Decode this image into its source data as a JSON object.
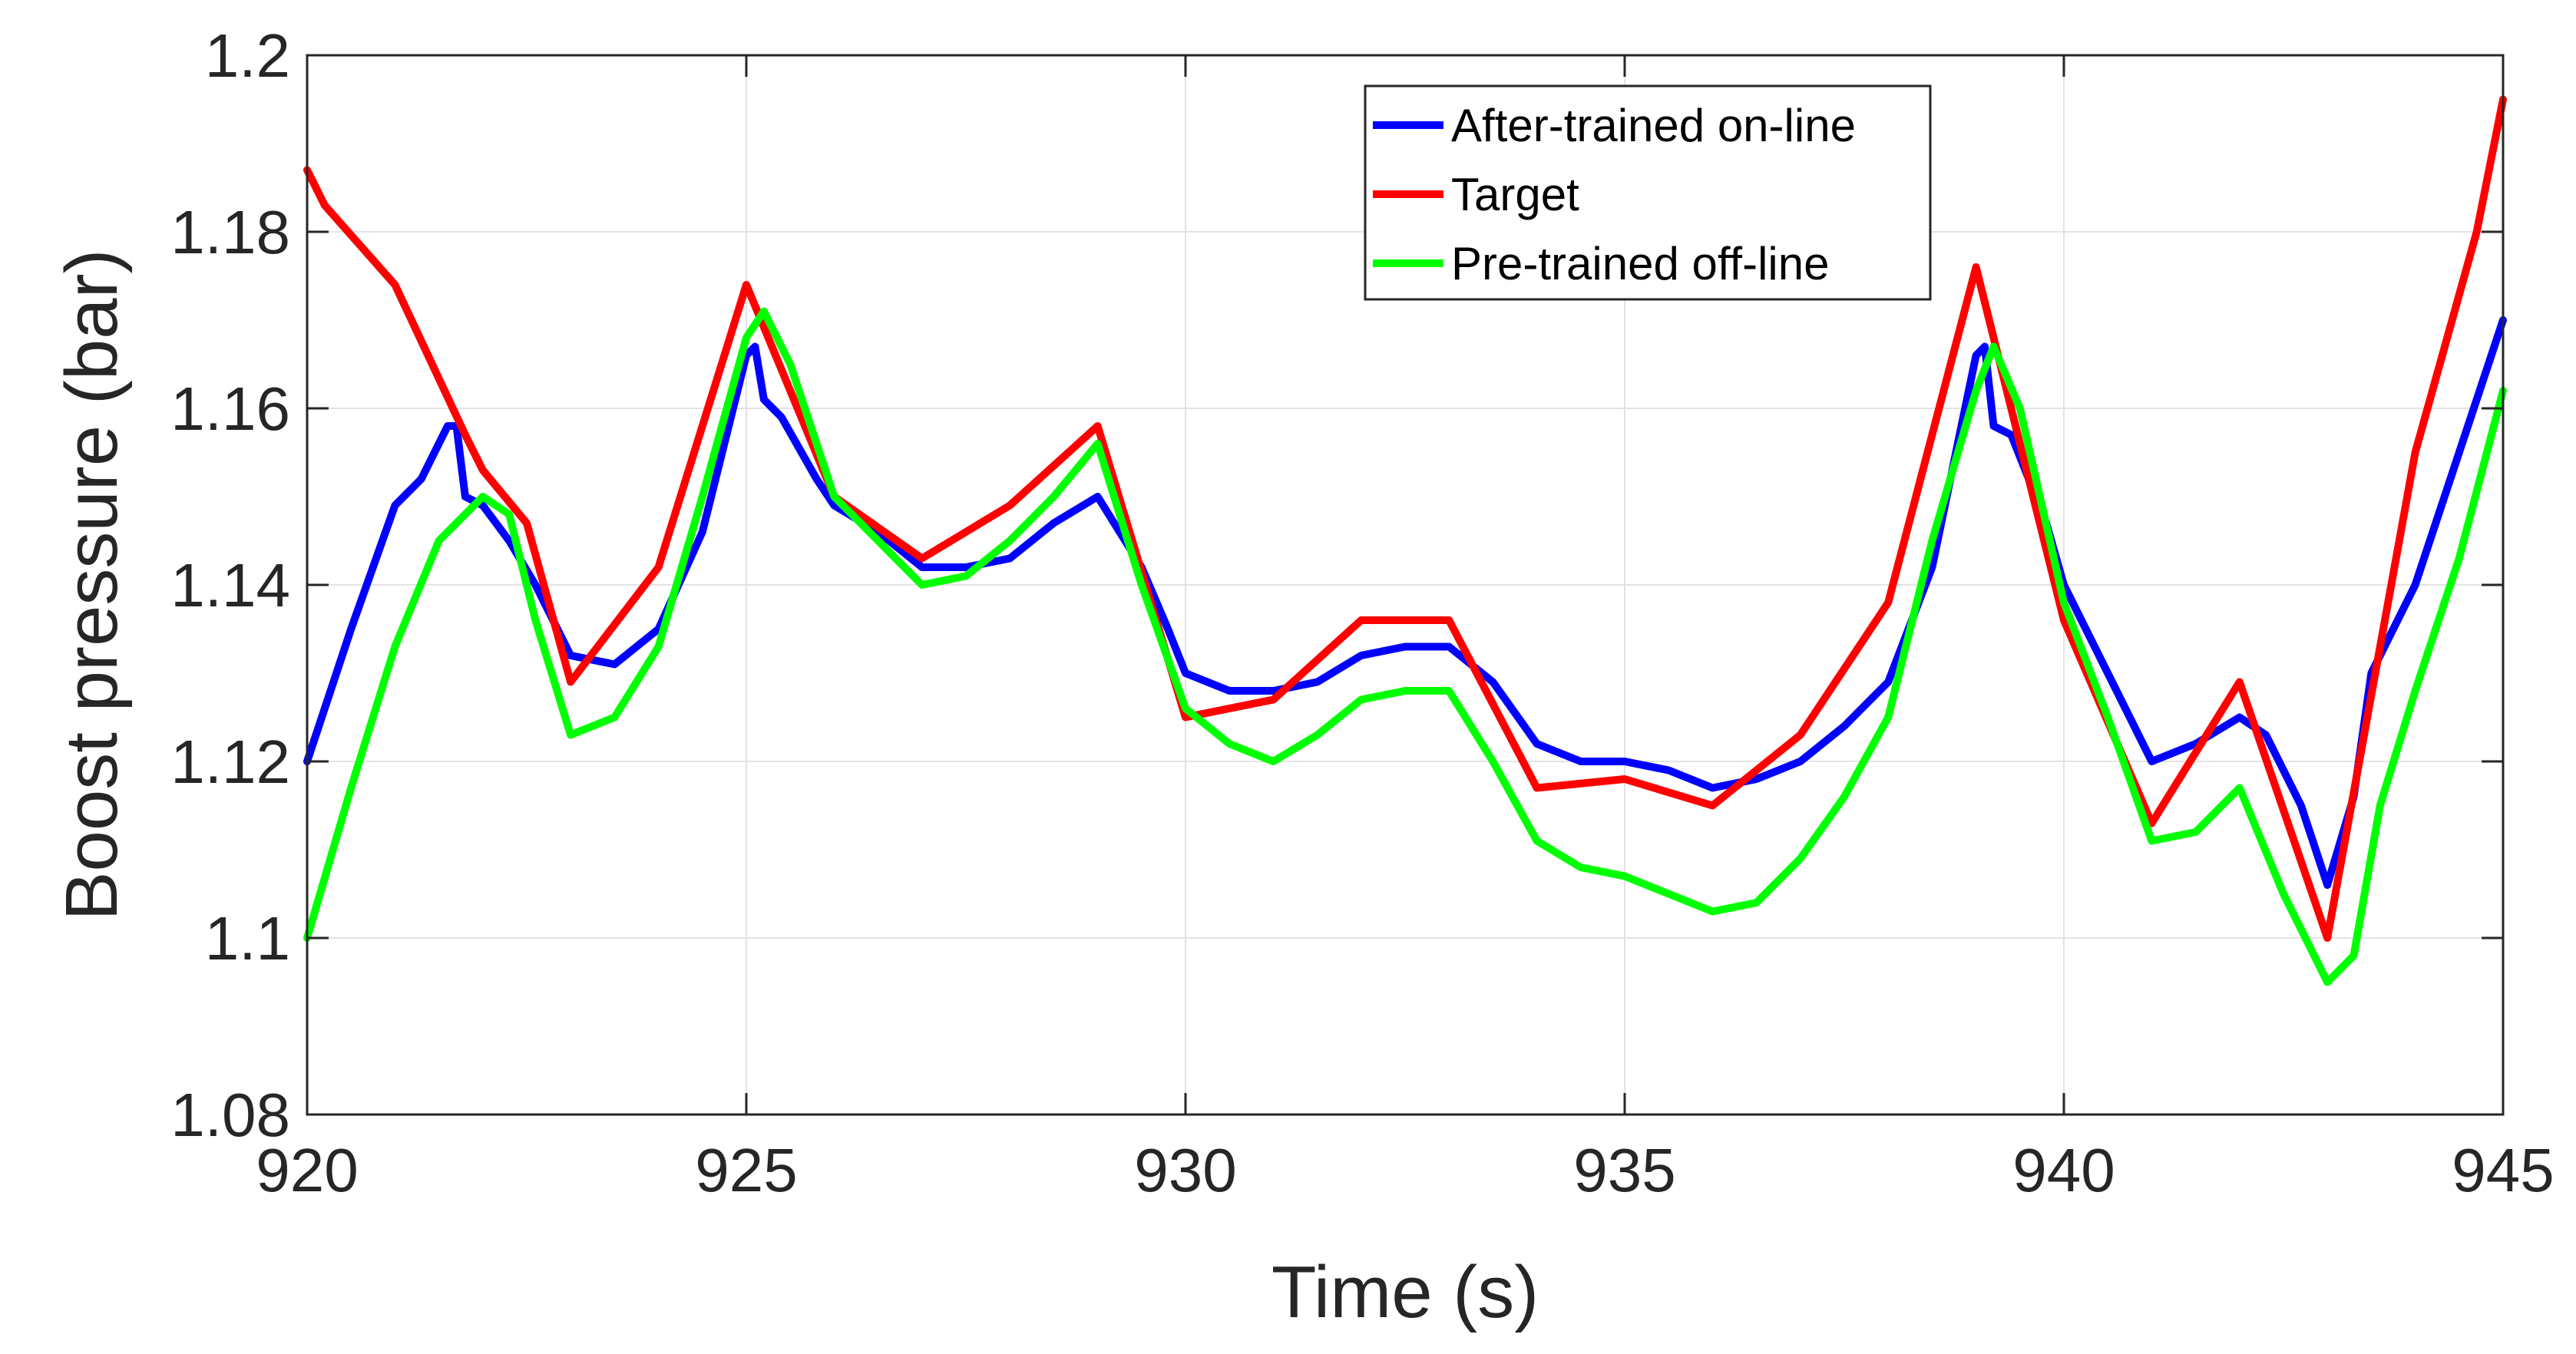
{
  "chart_data": {
    "type": "line",
    "title": "",
    "xlabel": "Time (s)",
    "ylabel": "Boost pressure (bar)",
    "xlim": [
      920,
      945
    ],
    "ylim": [
      1.08,
      1.2
    ],
    "x_ticks": [
      920,
      925,
      930,
      935,
      940,
      945
    ],
    "y_ticks": [
      1.08,
      1.1,
      1.12,
      1.14,
      1.16,
      1.18,
      1.2
    ],
    "x_tick_labels": [
      "920",
      "925",
      "930",
      "935",
      "940",
      "945"
    ],
    "y_tick_labels": [
      "1.08",
      "1.1",
      "1.12",
      "1.14",
      "1.16",
      "1.18",
      "1.2"
    ],
    "grid": true,
    "legend_position": "top-right",
    "series": [
      {
        "name": "After-trained on-line",
        "color": "#0000ff",
        "points": [
          [
            920,
            1.12
          ],
          [
            920.5,
            1.135
          ],
          [
            921,
            1.149
          ],
          [
            921.3,
            1.152
          ],
          [
            921.6,
            1.158
          ],
          [
            921.7,
            1.158
          ],
          [
            921.8,
            1.15
          ],
          [
            922,
            1.149
          ],
          [
            922.3,
            1.145
          ],
          [
            922.6,
            1.14
          ],
          [
            923,
            1.132
          ],
          [
            923.5,
            1.131
          ],
          [
            924,
            1.135
          ],
          [
            924.5,
            1.146
          ],
          [
            925,
            1.166
          ],
          [
            925.1,
            1.167
          ],
          [
            925.2,
            1.161
          ],
          [
            925.4,
            1.159
          ],
          [
            925.8,
            1.152
          ],
          [
            926,
            1.149
          ],
          [
            926.5,
            1.146
          ],
          [
            927,
            1.142
          ],
          [
            927.5,
            1.142
          ],
          [
            928,
            1.143
          ],
          [
            928.5,
            1.147
          ],
          [
            929,
            1.15
          ],
          [
            929.5,
            1.142
          ],
          [
            929.8,
            1.135
          ],
          [
            930,
            1.13
          ],
          [
            930.5,
            1.128
          ],
          [
            931,
            1.128
          ],
          [
            931.5,
            1.129
          ],
          [
            932,
            1.132
          ],
          [
            932.5,
            1.133
          ],
          [
            933,
            1.133
          ],
          [
            933.5,
            1.129
          ],
          [
            934,
            1.122
          ],
          [
            934.5,
            1.12
          ],
          [
            935,
            1.12
          ],
          [
            935.5,
            1.119
          ],
          [
            936,
            1.117
          ],
          [
            936.5,
            1.118
          ],
          [
            937,
            1.12
          ],
          [
            937.5,
            1.124
          ],
          [
            938,
            1.129
          ],
          [
            938.5,
            1.142
          ],
          [
            939,
            1.166
          ],
          [
            939.1,
            1.167
          ],
          [
            939.2,
            1.158
          ],
          [
            939.4,
            1.157
          ],
          [
            939.8,
            1.147
          ],
          [
            940,
            1.14
          ],
          [
            940.5,
            1.13
          ],
          [
            941,
            1.12
          ],
          [
            941.5,
            1.122
          ],
          [
            942,
            1.125
          ],
          [
            942.3,
            1.123
          ],
          [
            942.7,
            1.115
          ],
          [
            943,
            1.106
          ],
          [
            943.3,
            1.116
          ],
          [
            943.5,
            1.13
          ],
          [
            944,
            1.14
          ],
          [
            944.5,
            1.155
          ],
          [
            945,
            1.17
          ]
        ]
      },
      {
        "name": "Target",
        "color": "#ff0000",
        "points": [
          [
            920,
            1.187
          ],
          [
            920.2,
            1.183
          ],
          [
            921,
            1.174
          ],
          [
            921.8,
            1.157
          ],
          [
            922,
            1.153
          ],
          [
            922.5,
            1.147
          ],
          [
            923,
            1.129
          ],
          [
            924,
            1.142
          ],
          [
            925,
            1.174
          ],
          [
            926,
            1.15
          ],
          [
            927,
            1.143
          ],
          [
            928,
            1.149
          ],
          [
            929,
            1.158
          ],
          [
            930,
            1.125
          ],
          [
            931,
            1.127
          ],
          [
            932,
            1.136
          ],
          [
            933,
            1.136
          ],
          [
            934,
            1.117
          ],
          [
            935,
            1.118
          ],
          [
            936,
            1.115
          ],
          [
            937,
            1.123
          ],
          [
            938,
            1.138
          ],
          [
            939,
            1.176
          ],
          [
            940,
            1.136
          ],
          [
            941,
            1.113
          ],
          [
            942,
            1.129
          ],
          [
            943,
            1.1
          ],
          [
            944,
            1.155
          ],
          [
            944.7,
            1.18
          ],
          [
            945,
            1.195
          ]
        ]
      },
      {
        "name": "Pre-trained off-line",
        "color": "#00ff00",
        "points": [
          [
            920,
            1.1
          ],
          [
            920.5,
            1.117
          ],
          [
            921,
            1.133
          ],
          [
            921.5,
            1.145
          ],
          [
            922,
            1.15
          ],
          [
            922.3,
            1.148
          ],
          [
            922.6,
            1.136
          ],
          [
            923,
            1.123
          ],
          [
            923.5,
            1.125
          ],
          [
            924,
            1.133
          ],
          [
            924.5,
            1.15
          ],
          [
            925,
            1.168
          ],
          [
            925.2,
            1.171
          ],
          [
            925.5,
            1.165
          ],
          [
            926,
            1.15
          ],
          [
            926.5,
            1.145
          ],
          [
            927,
            1.14
          ],
          [
            927.5,
            1.141
          ],
          [
            928,
            1.145
          ],
          [
            928.5,
            1.15
          ],
          [
            929,
            1.156
          ],
          [
            929.5,
            1.14
          ],
          [
            930,
            1.126
          ],
          [
            930.5,
            1.122
          ],
          [
            931,
            1.12
          ],
          [
            931.5,
            1.123
          ],
          [
            932,
            1.127
          ],
          [
            932.5,
            1.128
          ],
          [
            933,
            1.128
          ],
          [
            933.5,
            1.12
          ],
          [
            934,
            1.111
          ],
          [
            934.5,
            1.108
          ],
          [
            935,
            1.107
          ],
          [
            935.5,
            1.105
          ],
          [
            936,
            1.103
          ],
          [
            936.5,
            1.104
          ],
          [
            937,
            1.109
          ],
          [
            937.5,
            1.116
          ],
          [
            938,
            1.125
          ],
          [
            938.5,
            1.145
          ],
          [
            939,
            1.162
          ],
          [
            939.2,
            1.167
          ],
          [
            939.5,
            1.16
          ],
          [
            940,
            1.138
          ],
          [
            940.5,
            1.125
          ],
          [
            941,
            1.111
          ],
          [
            941.5,
            1.112
          ],
          [
            942,
            1.117
          ],
          [
            942.5,
            1.105
          ],
          [
            943,
            1.095
          ],
          [
            943.3,
            1.098
          ],
          [
            943.6,
            1.115
          ],
          [
            944,
            1.128
          ],
          [
            944.5,
            1.143
          ],
          [
            945,
            1.162
          ]
        ]
      }
    ]
  }
}
